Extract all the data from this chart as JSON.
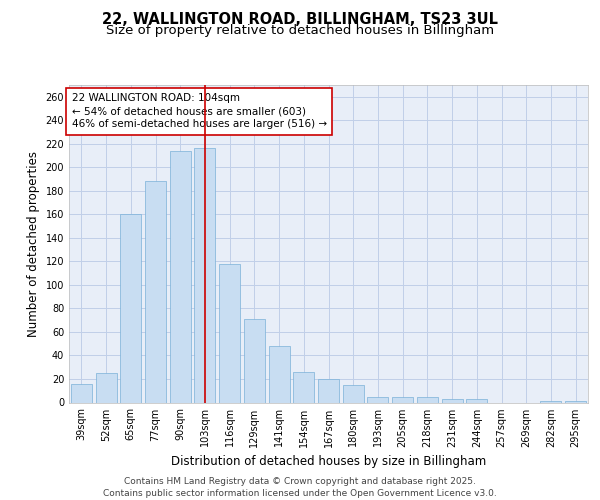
{
  "title_line1": "22, WALLINGTON ROAD, BILLINGHAM, TS23 3UL",
  "title_line2": "Size of property relative to detached houses in Billingham",
  "xlabel": "Distribution of detached houses by size in Billingham",
  "ylabel": "Number of detached properties",
  "categories": [
    "39sqm",
    "52sqm",
    "65sqm",
    "77sqm",
    "90sqm",
    "103sqm",
    "116sqm",
    "129sqm",
    "141sqm",
    "154sqm",
    "167sqm",
    "180sqm",
    "193sqm",
    "205sqm",
    "218sqm",
    "231sqm",
    "244sqm",
    "257sqm",
    "269sqm",
    "282sqm",
    "295sqm"
  ],
  "values": [
    16,
    25,
    160,
    188,
    214,
    216,
    118,
    71,
    48,
    26,
    20,
    15,
    5,
    5,
    5,
    3,
    3,
    0,
    0,
    1,
    1
  ],
  "bar_color": "#c8ddf2",
  "bar_edge_color": "#7ab0d8",
  "highlight_index": 5,
  "highlight_line_color": "#cc0000",
  "annotation_text": "22 WALLINGTON ROAD: 104sqm\n← 54% of detached houses are smaller (603)\n46% of semi-detached houses are larger (516) →",
  "annotation_box_color": "#ffffff",
  "annotation_box_edge": "#cc0000",
  "ylim": [
    0,
    270
  ],
  "yticks": [
    0,
    20,
    40,
    60,
    80,
    100,
    120,
    140,
    160,
    180,
    200,
    220,
    240,
    260
  ],
  "grid_color": "#c0cfe8",
  "background_color": "#e8eef8",
  "footer_text": "Contains HM Land Registry data © Crown copyright and database right 2025.\nContains public sector information licensed under the Open Government Licence v3.0.",
  "title_fontsize": 10.5,
  "subtitle_fontsize": 9.5,
  "axis_label_fontsize": 8.5,
  "tick_fontsize": 7,
  "annotation_fontsize": 7.5,
  "footer_fontsize": 6.5
}
